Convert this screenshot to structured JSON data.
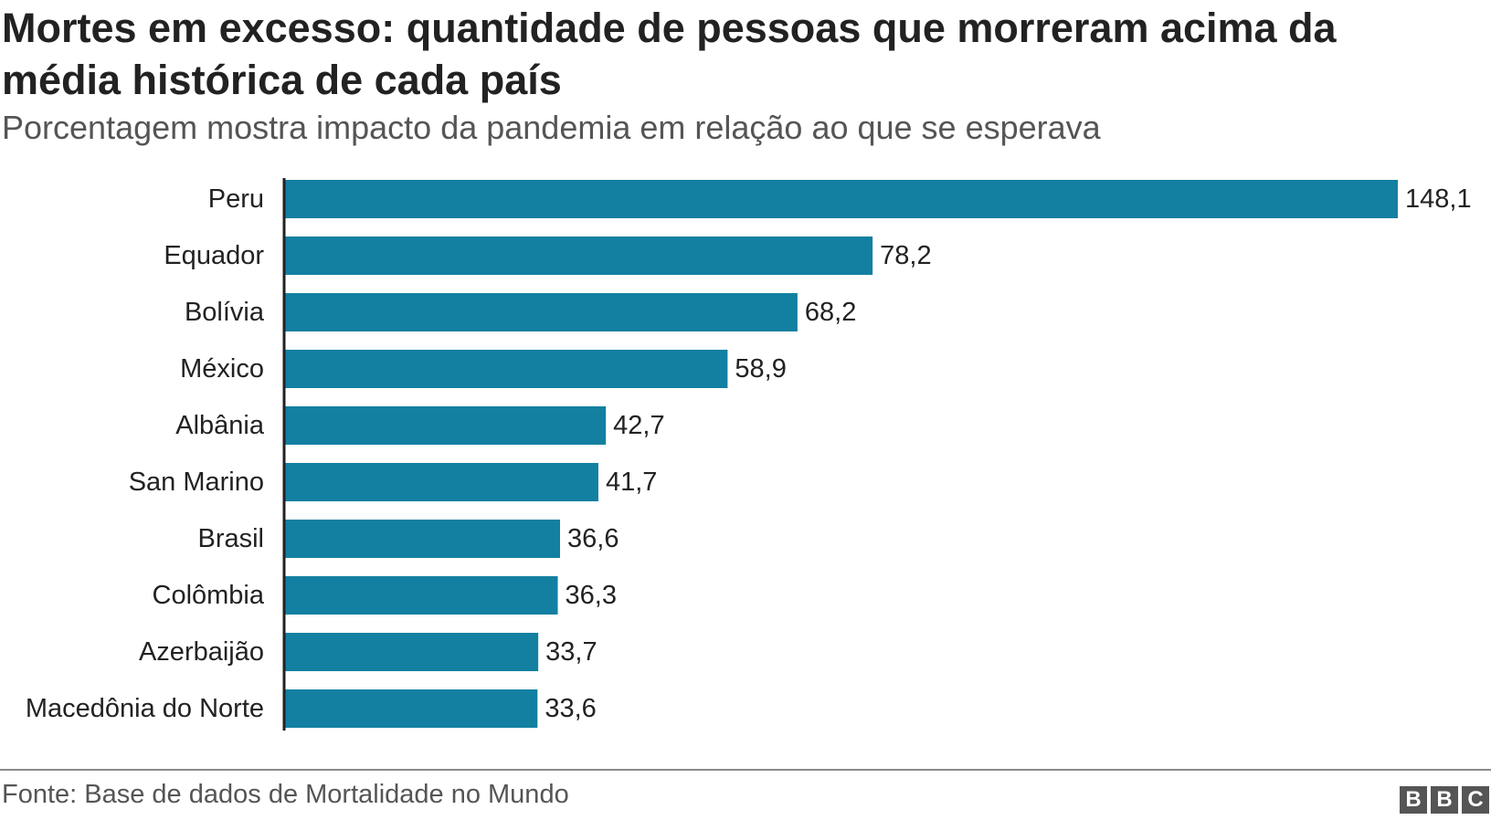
{
  "chart_data": {
    "type": "bar",
    "orientation": "horizontal",
    "title": "Mortes em excesso: quantidade de pessoas que morreram acima da média histórica de cada país",
    "subtitle": "Porcentagem mostra impacto da pandemia em relação ao que se esperava",
    "categories": [
      "Peru",
      "Equador",
      "Bolívia",
      "México",
      "Albânia",
      "San Marino",
      "Brasil",
      "Colômbia",
      "Azerbaijão",
      "Macedônia do Norte"
    ],
    "values": [
      148.1,
      78.2,
      68.2,
      58.9,
      42.7,
      41.7,
      36.6,
      36.3,
      33.7,
      33.6
    ],
    "value_labels": [
      "148,1",
      "78,2",
      "68,2",
      "58,9",
      "42,7",
      "41,7",
      "36,6",
      "36,3",
      "33,7",
      "33,6"
    ],
    "bar_color": "#1380a1",
    "xlim": [
      0,
      148.1
    ],
    "grid": false,
    "legend": "none"
  },
  "footer": {
    "source": "Fonte: Base de dados de Mortalidade no Mundo",
    "logo_letters": [
      "B",
      "B",
      "C"
    ]
  }
}
